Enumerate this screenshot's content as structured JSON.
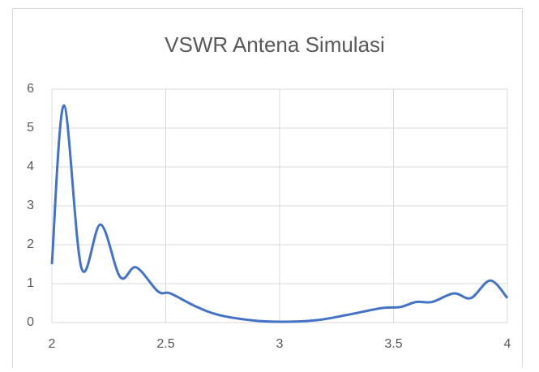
{
  "chart_data": {
    "type": "line",
    "title": "VSWR Antena Simulasi",
    "x": [
      2,
      2.053,
      2.13,
      2.214,
      2.3,
      2.37,
      2.466,
      2.52,
      2.63,
      2.73,
      2.875,
      3.0,
      3.16,
      3.3,
      3.445,
      3.53,
      3.6,
      3.67,
      3.765,
      3.84,
      3.925,
      4.0
    ],
    "series": [
      {
        "name": "VSWR",
        "color": "#4472c4",
        "values": [
          1.5,
          5.58,
          1.4,
          2.52,
          1.17,
          1.42,
          0.8,
          0.75,
          0.42,
          0.2,
          0.06,
          0.02,
          0.06,
          0.2,
          0.37,
          0.4,
          0.53,
          0.53,
          0.75,
          0.63,
          1.08,
          0.63
        ]
      }
    ],
    "xlim": [
      2,
      4
    ],
    "xticks": [
      2,
      2.5,
      3,
      3.5,
      4
    ],
    "ylim": [
      0,
      6
    ],
    "yticks": [
      0,
      1,
      2,
      3,
      4,
      5,
      6
    ],
    "grid": true
  }
}
